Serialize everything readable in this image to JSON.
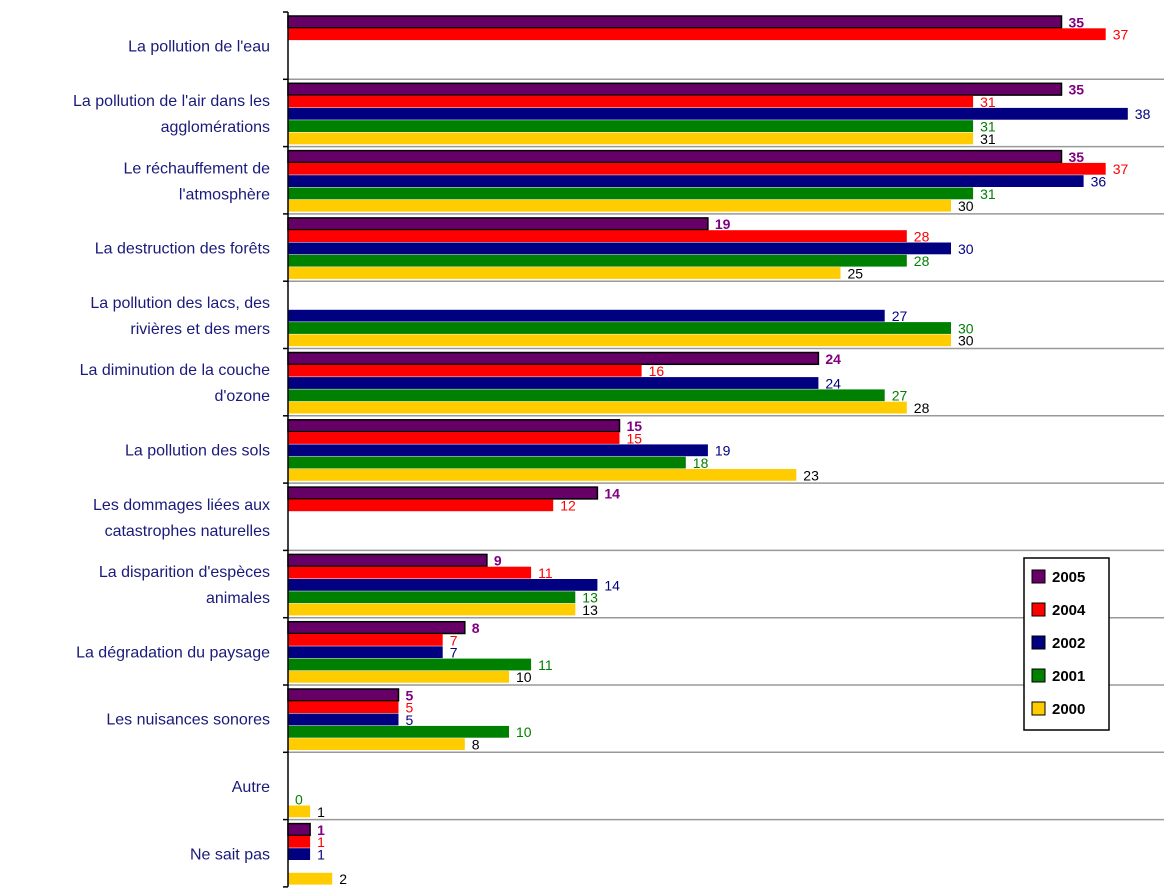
{
  "chart_data": {
    "type": "bar",
    "orientation": "horizontal",
    "title": "",
    "xlabel": "",
    "ylabel": "",
    "xlim": [
      0,
      40
    ],
    "grid": true,
    "legend_position": "right",
    "categories": [
      [
        "La pollution de l'eau"
      ],
      [
        "La pollution de l'air dans les",
        "agglomérations"
      ],
      [
        "Le réchauffement de",
        "l'atmosphère"
      ],
      [
        "La destruction des forêts"
      ],
      [
        "La pollution des lacs, des",
        "rivières et des mers"
      ],
      [
        "La diminution de la couche",
        "d'ozone"
      ],
      [
        "La pollution des sols"
      ],
      [
        "Les dommages liées aux",
        "catastrophes naturelles"
      ],
      [
        "La disparition d'espèces",
        "animales"
      ],
      [
        "La dégradation du paysage"
      ],
      [
        "Les nuisances sonores"
      ],
      [
        "Autre"
      ],
      [
        "Ne sait pas"
      ]
    ],
    "series": [
      {
        "name": "2005",
        "color": "#660066",
        "label_color": "#800080",
        "bold": true,
        "values": [
          35,
          35,
          35,
          19,
          null,
          24,
          15,
          14,
          9,
          8,
          5,
          null,
          1
        ]
      },
      {
        "name": "2004",
        "color": "#ff0000",
        "label_color": "#ff0000",
        "bold": false,
        "values": [
          37,
          31,
          37,
          28,
          null,
          16,
          15,
          12,
          11,
          7,
          5,
          null,
          1
        ]
      },
      {
        "name": "2002",
        "color": "#000080",
        "label_color": "#000080",
        "bold": false,
        "values": [
          null,
          38,
          36,
          30,
          27,
          24,
          19,
          null,
          14,
          7,
          5,
          null,
          1
        ]
      },
      {
        "name": "2001",
        "color": "#008000",
        "label_color": "#008000",
        "bold": false,
        "values": [
          null,
          31,
          31,
          28,
          30,
          27,
          18,
          null,
          13,
          11,
          10,
          0,
          null
        ]
      },
      {
        "name": "2000",
        "color": "#ffcc00",
        "label_color": "#000000",
        "bold": false,
        "values": [
          null,
          31,
          30,
          25,
          30,
          28,
          23,
          null,
          13,
          10,
          8,
          1,
          2
        ]
      }
    ]
  }
}
